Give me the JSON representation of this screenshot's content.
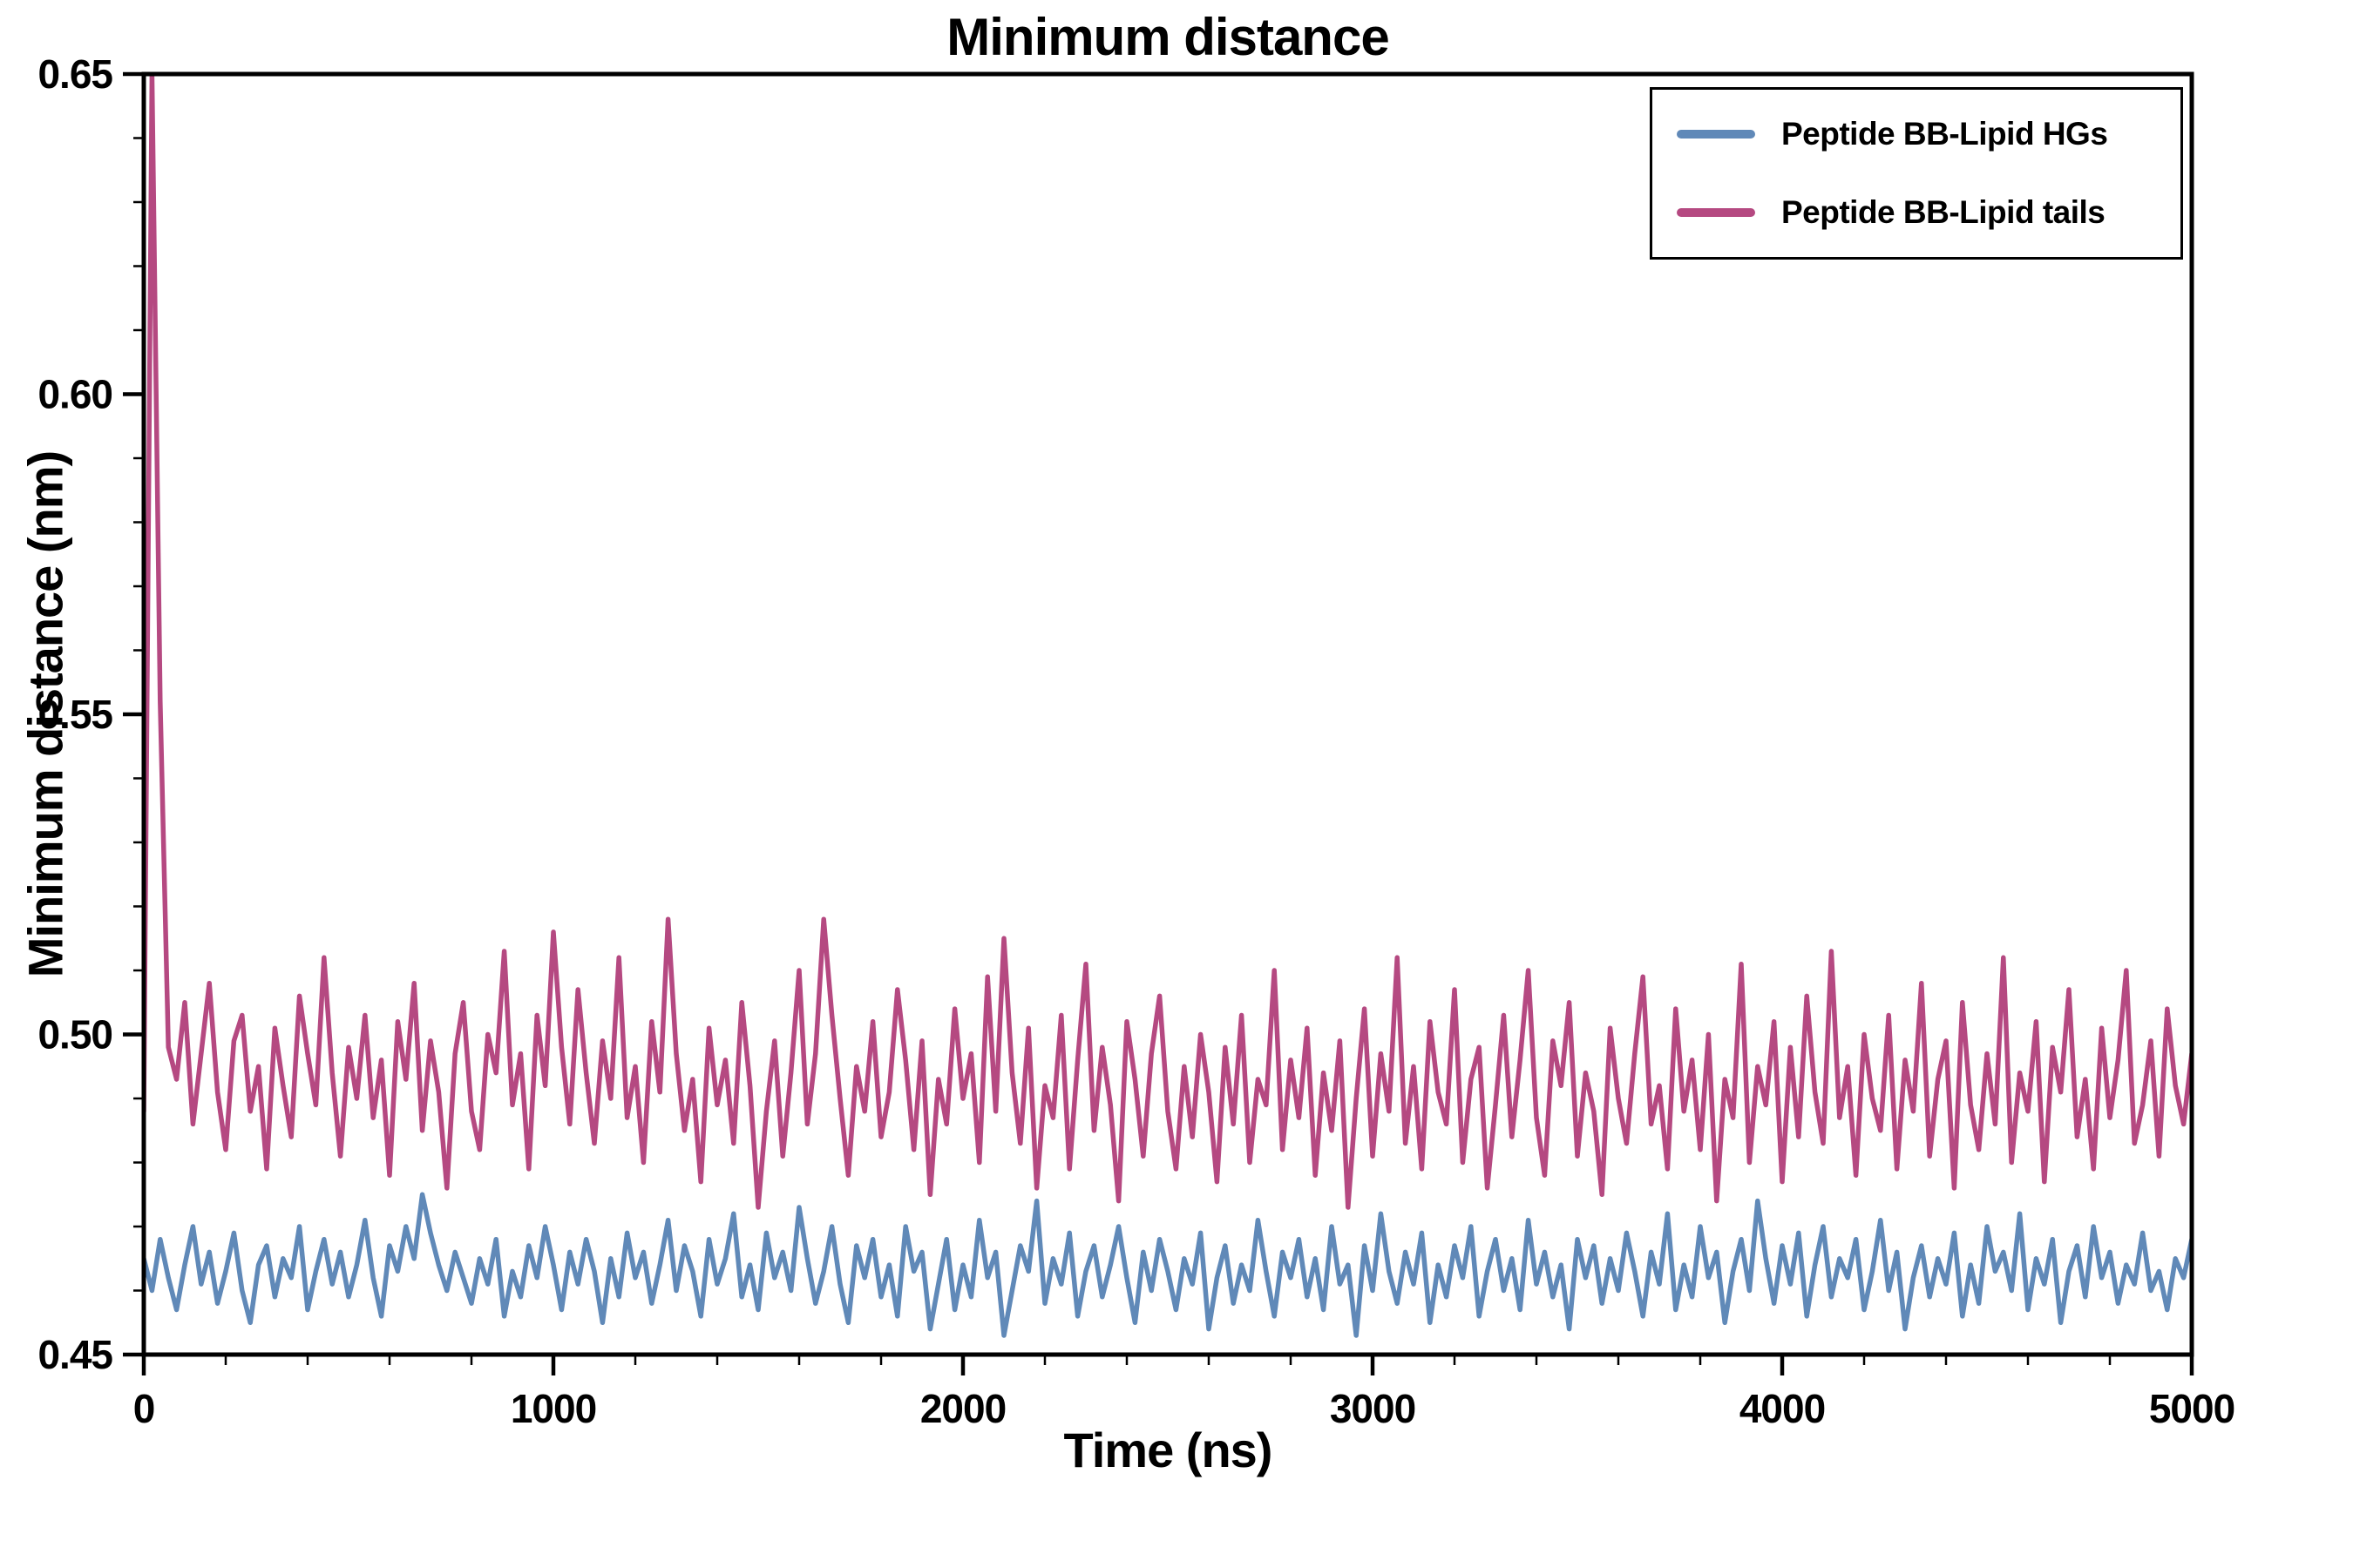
{
  "chart_data": {
    "type": "line",
    "title": "Minimum distance",
    "xlabel": "Time (ns)",
    "ylabel": "Minimum distance (nm)",
    "xlim": [
      0,
      5000
    ],
    "ylim": [
      0.45,
      0.65
    ],
    "xticks": [
      0,
      1000,
      2000,
      3000,
      4000,
      5000
    ],
    "xticklabels": [
      "0",
      "1000",
      "2000",
      "3000",
      "4000",
      "5000"
    ],
    "yticks": [
      0.45,
      0.5,
      0.55,
      0.6,
      0.65
    ],
    "yticklabels": [
      "0.45",
      "0.50",
      "0.55",
      "0.60",
      "0.65"
    ],
    "x_minor_step": 200,
    "y_minor_step": 0.01,
    "grid": false,
    "legend_position": "upper right",
    "background": "#ffffff",
    "axis_color": "#000000",
    "series": [
      {
        "name": "Peptide BB-Lipid HGs",
        "color": "#6089b8",
        "x_start": 0,
        "x_end": 5000,
        "values": [
          0.465,
          0.46,
          0.468,
          0.462,
          0.457,
          0.464,
          0.47,
          0.461,
          0.466,
          0.458,
          0.463,
          0.469,
          0.46,
          0.455,
          0.464,
          0.467,
          0.459,
          0.465,
          0.462,
          0.47,
          0.457,
          0.463,
          0.468,
          0.461,
          0.466,
          0.459,
          0.464,
          0.471,
          0.462,
          0.456,
          0.467,
          0.463,
          0.47,
          0.465,
          0.475,
          0.469,
          0.464,
          0.46,
          0.466,
          0.462,
          0.458,
          0.465,
          0.461,
          0.468,
          0.456,
          0.463,
          0.459,
          0.467,
          0.462,
          0.47,
          0.464,
          0.457,
          0.466,
          0.461,
          0.468,
          0.463,
          0.455,
          0.465,
          0.459,
          0.469,
          0.462,
          0.466,
          0.458,
          0.464,
          0.471,
          0.46,
          0.467,
          0.463,
          0.456,
          0.468,
          0.461,
          0.465,
          0.472,
          0.459,
          0.464,
          0.457,
          0.469,
          0.462,
          0.466,
          0.46,
          0.473,
          0.465,
          0.458,
          0.463,
          0.47,
          0.461,
          0.455,
          0.467,
          0.462,
          0.468,
          0.459,
          0.464,
          0.456,
          0.47,
          0.463,
          0.466,
          0.454,
          0.461,
          0.468,
          0.457,
          0.464,
          0.459,
          0.471,
          0.462,
          0.466,
          0.453,
          0.46,
          0.467,
          0.463,
          0.474,
          0.458,
          0.465,
          0.461,
          0.469,
          0.456,
          0.463,
          0.467,
          0.459,
          0.464,
          0.47,
          0.462,
          0.455,
          0.466,
          0.46,
          0.468,
          0.463,
          0.457,
          0.465,
          0.461,
          0.469,
          0.454,
          0.462,
          0.467,
          0.458,
          0.464,
          0.46,
          0.471,
          0.463,
          0.456,
          0.466,
          0.462,
          0.468,
          0.459,
          0.465,
          0.457,
          0.47,
          0.461,
          0.464,
          0.453,
          0.467,
          0.46,
          0.472,
          0.463,
          0.458,
          0.466,
          0.461,
          0.469,
          0.455,
          0.464,
          0.459,
          0.467,
          0.462,
          0.47,
          0.456,
          0.463,
          0.468,
          0.46,
          0.465,
          0.457,
          0.471,
          0.461,
          0.466,
          0.459,
          0.464,
          0.454,
          0.468,
          0.462,
          0.467,
          0.458,
          0.465,
          0.46,
          0.469,
          0.463,
          0.456,
          0.466,
          0.461,
          0.472,
          0.457,
          0.464,
          0.459,
          0.47,
          0.462,
          0.466,
          0.455,
          0.463,
          0.468,
          0.46,
          0.474,
          0.465,
          0.458,
          0.467,
          0.461,
          0.469,
          0.456,
          0.464,
          0.47,
          0.459,
          0.465,
          0.462,
          0.468,
          0.457,
          0.463,
          0.471,
          0.46,
          0.466,
          0.454,
          0.462,
          0.467,
          0.459,
          0.465,
          0.461,
          0.469,
          0.456,
          0.464,
          0.458,
          0.47,
          0.463,
          0.466,
          0.46,
          0.472,
          0.457,
          0.465,
          0.461,
          0.468,
          0.455,
          0.463,
          0.467,
          0.459,
          0.47,
          0.462,
          0.466,
          0.458,
          0.464,
          0.461,
          0.469,
          0.46,
          0.463,
          0.457,
          0.465,
          0.462,
          0.468
        ]
      },
      {
        "name": "Peptide BB-Lipid tails",
        "color": "#b54981",
        "x_start": 0,
        "x_end": 5000,
        "values": [
          0.488,
          0.65,
          0.552,
          0.498,
          0.493,
          0.505,
          0.486,
          0.497,
          0.508,
          0.491,
          0.482,
          0.499,
          0.503,
          0.488,
          0.495,
          0.479,
          0.501,
          0.492,
          0.484,
          0.506,
          0.497,
          0.489,
          0.512,
          0.494,
          0.481,
          0.498,
          0.49,
          0.503,
          0.487,
          0.496,
          0.478,
          0.502,
          0.493,
          0.508,
          0.485,
          0.499,
          0.491,
          0.476,
          0.497,
          0.505,
          0.488,
          0.482,
          0.5,
          0.494,
          0.513,
          0.489,
          0.497,
          0.479,
          0.503,
          0.492,
          0.516,
          0.498,
          0.486,
          0.507,
          0.494,
          0.483,
          0.499,
          0.49,
          0.512,
          0.487,
          0.495,
          0.48,
          0.502,
          0.491,
          0.518,
          0.497,
          0.485,
          0.493,
          0.477,
          0.501,
          0.489,
          0.496,
          0.483,
          0.505,
          0.492,
          0.473,
          0.488,
          0.499,
          0.481,
          0.494,
          0.51,
          0.486,
          0.497,
          0.518,
          0.503,
          0.49,
          0.478,
          0.495,
          0.488,
          0.502,
          0.484,
          0.491,
          0.507,
          0.496,
          0.482,
          0.499,
          0.475,
          0.493,
          0.486,
          0.504,
          0.49,
          0.497,
          0.48,
          0.509,
          0.488,
          0.515,
          0.494,
          0.483,
          0.501,
          0.476,
          0.492,
          0.487,
          0.503,
          0.479,
          0.496,
          0.511,
          0.485,
          0.498,
          0.489,
          0.474,
          0.502,
          0.493,
          0.481,
          0.497,
          0.506,
          0.488,
          0.479,
          0.495,
          0.484,
          0.5,
          0.491,
          0.477,
          0.498,
          0.486,
          0.503,
          0.48,
          0.493,
          0.489,
          0.51,
          0.482,
          0.496,
          0.487,
          0.501,
          0.478,
          0.494,
          0.485,
          0.499,
          0.473,
          0.49,
          0.504,
          0.481,
          0.497,
          0.488,
          0.512,
          0.483,
          0.495,
          0.479,
          0.502,
          0.491,
          0.486,
          0.507,
          0.48,
          0.493,
          0.498,
          0.476,
          0.489,
          0.503,
          0.484,
          0.496,
          0.51,
          0.487,
          0.478,
          0.499,
          0.492,
          0.505,
          0.481,
          0.494,
          0.488,
          0.475,
          0.501,
          0.49,
          0.483,
          0.497,
          0.509,
          0.486,
          0.492,
          0.479,
          0.504,
          0.488,
          0.496,
          0.482,
          0.5,
          0.474,
          0.493,
          0.487,
          0.511,
          0.48,
          0.495,
          0.489,
          0.502,
          0.477,
          0.498,
          0.484,
          0.506,
          0.491,
          0.483,
          0.513,
          0.487,
          0.495,
          0.478,
          0.5,
          0.49,
          0.485,
          0.503,
          0.479,
          0.496,
          0.488,
          0.508,
          0.481,
          0.493,
          0.499,
          0.476,
          0.505,
          0.489,
          0.482,
          0.497,
          0.486,
          0.512,
          0.48,
          0.494,
          0.488,
          0.502,
          0.477,
          0.498,
          0.491,
          0.507,
          0.484,
          0.493,
          0.479,
          0.501,
          0.487,
          0.496,
          0.51,
          0.483,
          0.489,
          0.499,
          0.481,
          0.504,
          0.492,
          0.486,
          0.497
        ]
      }
    ]
  }
}
